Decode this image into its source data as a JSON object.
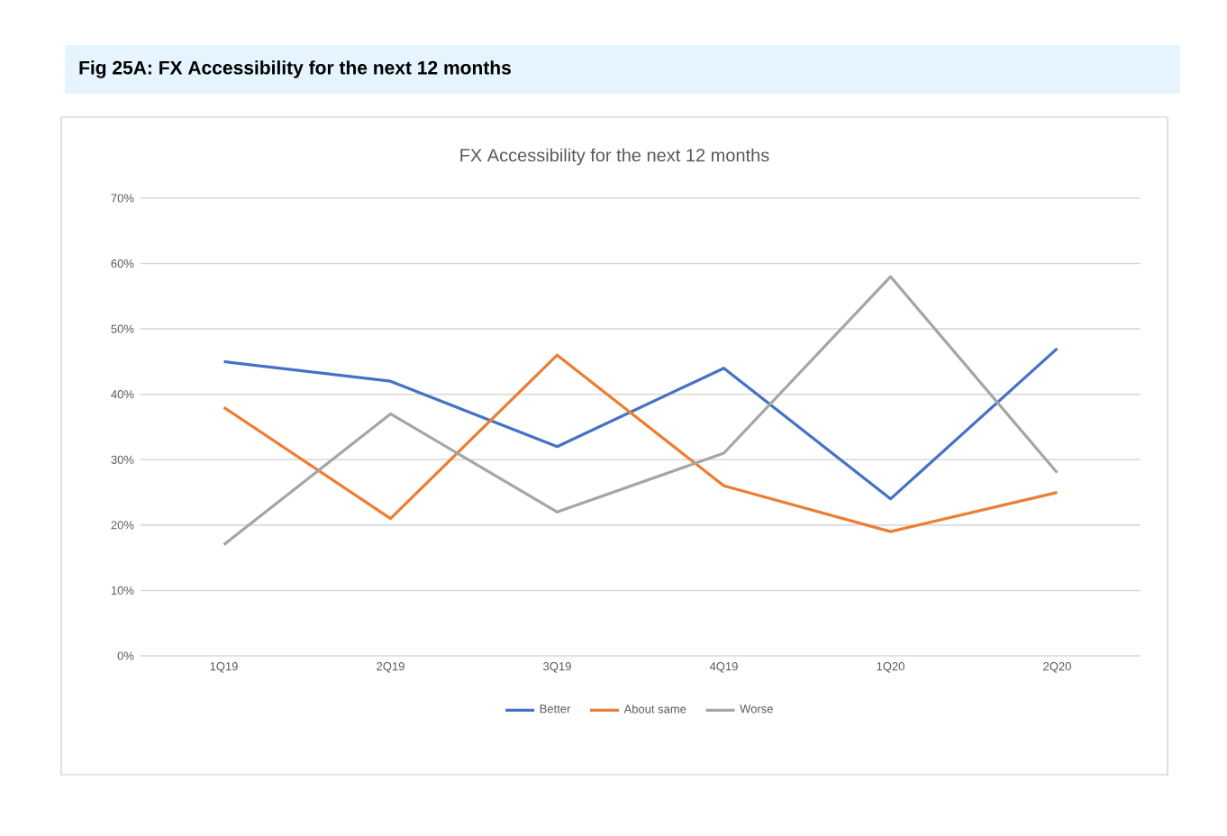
{
  "chart_data": {
    "type": "line",
    "title": "Fig 25A: FX Accessibility  for the next 12 months",
    "subtitle": "FX Accessibility for the next 12 months",
    "categories": [
      "1Q19",
      "2Q19",
      "3Q19",
      "4Q19",
      "1Q20",
      "2Q20"
    ],
    "series": [
      {
        "name": "Better",
        "color": "#4472c4",
        "values": [
          45,
          42,
          32,
          44,
          24,
          47
        ]
      },
      {
        "name": "About same",
        "color": "#ed7d31",
        "values": [
          38,
          21,
          46,
          26,
          19,
          25
        ]
      },
      {
        "name": "Worse",
        "color": "#a5a5a5",
        "values": [
          17,
          37,
          22,
          31,
          58,
          28
        ]
      }
    ],
    "ylim": [
      0,
      70
    ],
    "yticks": [
      {
        "value": 0,
        "label": "0%"
      },
      {
        "value": 10,
        "label": "10%"
      },
      {
        "value": 20,
        "label": "20%"
      },
      {
        "value": 30,
        "label": "30%"
      },
      {
        "value": 40,
        "label": "40%"
      },
      {
        "value": 50,
        "label": "50%"
      },
      {
        "value": 60,
        "label": "60%"
      },
      {
        "value": 70,
        "label": "70%"
      }
    ],
    "grid": "y",
    "legend": "bottom",
    "marker": "none",
    "line_style": "solid"
  }
}
